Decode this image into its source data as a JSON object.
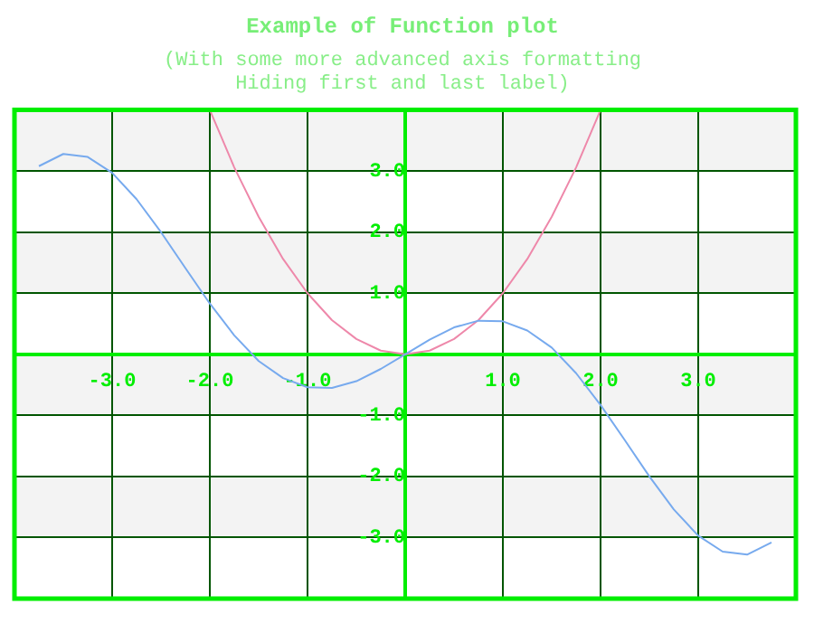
{
  "chart_data": {
    "type": "line",
    "title": "Example of Function plot",
    "subtitle": "(With some more advanced axis formatting\nHiding first and last label)",
    "xlim": [
      -4,
      4
    ],
    "ylim": [
      -4,
      4
    ],
    "xticks": [
      {
        "value": -4,
        "label": null
      },
      {
        "value": -3,
        "label": "-3.0"
      },
      {
        "value": -2,
        "label": "-2.0"
      },
      {
        "value": -1,
        "label": "-1.0"
      },
      {
        "value": 0,
        "label": null
      },
      {
        "value": 1,
        "label": "1.0"
      },
      {
        "value": 2,
        "label": "2.0"
      },
      {
        "value": 3,
        "label": "3.0"
      },
      {
        "value": 4,
        "label": null
      }
    ],
    "yticks": [
      {
        "value": -4,
        "label": null
      },
      {
        "value": -3,
        "label": "-3.0"
      },
      {
        "value": -2,
        "label": "-2.0"
      },
      {
        "value": -1,
        "label": "-1.0"
      },
      {
        "value": 0,
        "label": null
      },
      {
        "value": 1,
        "label": "1.0"
      },
      {
        "value": 2,
        "label": "2.0"
      },
      {
        "value": 3,
        "label": "3.0"
      },
      {
        "value": 4,
        "label": null
      }
    ],
    "grid": true,
    "marker": "none",
    "line_style": "solid",
    "series": [
      {
        "color": "#77aaee",
        "x": [
          -3.75,
          -3.5,
          -3.25,
          -3,
          -2.75,
          -2.5,
          -2.25,
          -2,
          -1.75,
          -1.5,
          -1.25,
          -1,
          -0.75,
          -0.5,
          -0.25,
          0,
          0.25,
          0.5,
          0.75,
          1,
          1.25,
          1.5,
          1.75,
          2,
          2.25,
          2.5,
          2.75,
          3,
          3.25,
          3.5,
          3.75
        ],
        "values": [
          3.08,
          3.28,
          3.23,
          2.97,
          2.54,
          2.0,
          1.41,
          0.83,
          0.31,
          -0.11,
          -0.39,
          -0.54,
          -0.55,
          -0.44,
          -0.24,
          0,
          0.24,
          0.44,
          0.55,
          0.54,
          0.39,
          0.11,
          -0.31,
          -0.83,
          -1.41,
          -2.0,
          -2.54,
          -2.97,
          -3.23,
          -3.28,
          -3.08
        ]
      },
      {
        "color": "#ee88aa",
        "x": [
          -2,
          -1.75,
          -1.5,
          -1.25,
          -1,
          -0.75,
          -0.5,
          -0.25,
          0,
          0.25,
          0.5,
          0.75,
          1,
          1.25,
          1.5,
          1.75,
          2
        ],
        "values": [
          4,
          3.06,
          2.25,
          1.56,
          1,
          0.56,
          0.25,
          0.06,
          0,
          0.06,
          0.25,
          0.56,
          1,
          1.56,
          2.25,
          3.06,
          4
        ]
      }
    ]
  }
}
